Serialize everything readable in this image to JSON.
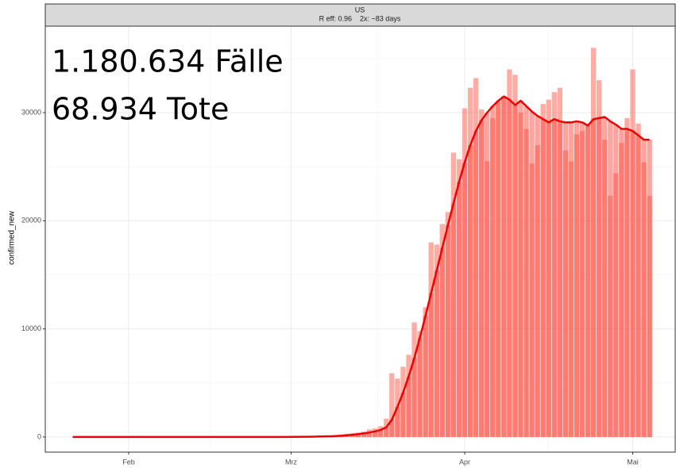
{
  "chart_data": {
    "type": "bar",
    "title": "US",
    "subtitle": "R eff: 0.96    2x: ~83 days",
    "ylabel": "confirmed_new",
    "annotations": [
      "1.180.634 Fälle",
      "68.934 Tote"
    ],
    "categories": [
      null,
      null,
      null,
      null,
      null,
      null,
      null,
      null,
      null,
      null,
      "Feb",
      null,
      null,
      null,
      null,
      null,
      null,
      null,
      null,
      null,
      null,
      null,
      null,
      null,
      null,
      null,
      null,
      null,
      null,
      null,
      null,
      null,
      null,
      null,
      null,
      null,
      null,
      null,
      null,
      "Mrz",
      null,
      null,
      null,
      null,
      null,
      null,
      null,
      null,
      null,
      null,
      null,
      null,
      null,
      null,
      null,
      null,
      null,
      null,
      null,
      null,
      null,
      null,
      null,
      null,
      null,
      null,
      null,
      null,
      null,
      null,
      "Apr",
      null,
      null,
      null,
      null,
      null,
      null,
      null,
      null,
      null,
      null,
      null,
      null,
      null,
      null,
      null,
      null,
      null,
      null,
      null,
      null,
      null,
      null,
      null,
      null,
      null,
      null,
      null,
      null,
      null,
      "Mai",
      null,
      null,
      null
    ],
    "series": [
      {
        "color": "#ff5a4a",
        "values": [
          0,
          0,
          0,
          0,
          0,
          0,
          0,
          0,
          0,
          0,
          0,
          0,
          0,
          0,
          0,
          0,
          0,
          0,
          0,
          0,
          0,
          0,
          0,
          0,
          0,
          0,
          0,
          0,
          0,
          0,
          0,
          0,
          0,
          0,
          0,
          0,
          0,
          0,
          0,
          20,
          20,
          30,
          30,
          60,
          70,
          80,
          100,
          120,
          200,
          300,
          350,
          400,
          500,
          700,
          800,
          1000,
          1700,
          5900,
          5400,
          6500,
          7600,
          10600,
          9800,
          12000,
          18000,
          17800,
          19700,
          20800,
          26300,
          25700,
          30400,
          32300,
          33200,
          30300,
          25500,
          29500,
          31000,
          31500,
          34000,
          33500,
          30000,
          28500,
          25300,
          27000,
          30800,
          31200,
          31900,
          32300,
          26500,
          25500,
          28000,
          28300,
          29000,
          36000,
          33000,
          27500,
          22300,
          24400,
          27200,
          29500,
          34000,
          29000,
          25400,
          22300
        ]
      },
      {
        "color": "#ff4a40",
        "line_color": "#ee0000",
        "values": [
          0,
          0,
          0,
          0,
          0,
          0,
          0,
          0,
          0,
          0,
          0,
          0,
          0,
          0,
          0,
          0,
          0,
          0,
          0,
          0,
          0,
          0,
          0,
          0,
          0,
          0,
          0,
          0,
          0,
          0,
          0,
          0,
          0,
          0,
          0,
          0,
          0,
          0,
          0,
          10,
          15,
          20,
          25,
          35,
          45,
          55,
          70,
          90,
          120,
          160,
          210,
          270,
          330,
          420,
          520,
          650,
          900,
          1600,
          2800,
          4100,
          5600,
          7300,
          9200,
          11200,
          13300,
          15400,
          17500,
          19600,
          21600,
          23600,
          25400,
          27000,
          28300,
          29300,
          30000,
          30600,
          31100,
          31500,
          31200,
          30700,
          31100,
          30600,
          30100,
          29700,
          29400,
          29100,
          29400,
          29200,
          29100,
          29100,
          29200,
          29100,
          28800,
          29400,
          29500,
          29600,
          29200,
          28900,
          28500,
          28500,
          28300,
          27900,
          27500,
          27500
        ]
      }
    ],
    "ylim": [
      -1400,
      38000
    ],
    "yticks": [
      0,
      10000,
      20000,
      30000
    ],
    "grid": true
  }
}
